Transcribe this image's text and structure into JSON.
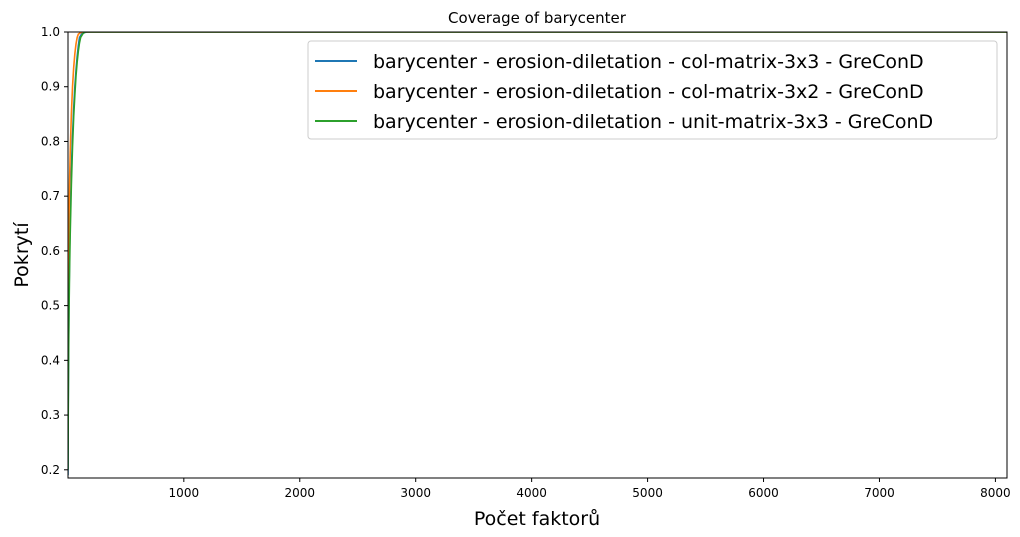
{
  "chart_data": {
    "type": "line",
    "title": "Coverage of barycenter",
    "xlabel": "Počet faktorů",
    "ylabel": "Pokrytí",
    "xlim": [
      1,
      8100
    ],
    "ylim": [
      0.185,
      1.0
    ],
    "xticks": [
      1000,
      2000,
      3000,
      4000,
      5000,
      6000,
      7000,
      8000
    ],
    "yticks": [
      0.2,
      0.3,
      0.4,
      0.5,
      0.6,
      0.7,
      0.8,
      0.9,
      1.0
    ],
    "ytick_labels": [
      "0.2",
      "0.3",
      "0.4",
      "0.5",
      "0.6",
      "0.7",
      "0.8",
      "0.9",
      "1.0"
    ],
    "grid": false,
    "legend_position": "top-right",
    "series": [
      {
        "name": "barycenter - erosion-diletation - col-matrix-3x3 - GreConD",
        "color": "#1f77b4",
        "x": [
          1,
          3,
          6,
          10,
          15,
          20,
          30,
          40,
          50,
          60,
          70,
          80,
          90,
          100,
          120,
          140,
          170,
          200,
          8100
        ],
        "y": [
          0.19,
          0.32,
          0.42,
          0.52,
          0.6,
          0.66,
          0.75,
          0.81,
          0.86,
          0.9,
          0.93,
          0.955,
          0.975,
          0.99,
          0.997,
          0.999,
          1.0,
          1.0,
          1.0
        ]
      },
      {
        "name": "barycenter - erosion-diletation - col-matrix-3x2 - GreConD",
        "color": "#ff7f0e",
        "x": [
          1,
          3,
          6,
          10,
          15,
          20,
          30,
          40,
          50,
          60,
          70,
          80,
          90,
          110,
          130,
          160,
          8100
        ],
        "y": [
          0.3,
          0.45,
          0.56,
          0.66,
          0.73,
          0.78,
          0.85,
          0.9,
          0.935,
          0.96,
          0.978,
          0.99,
          0.996,
          0.999,
          1.0,
          1.0,
          1.0
        ]
      },
      {
        "name": "barycenter - erosion-diletation - unit-matrix-3x3 - GreConD",
        "color": "#2ca02c",
        "x": [
          1,
          3,
          6,
          10,
          15,
          20,
          30,
          40,
          50,
          60,
          70,
          80,
          90,
          100,
          110,
          130,
          150,
          180,
          8100
        ],
        "y": [
          0.2,
          0.3,
          0.4,
          0.49,
          0.57,
          0.63,
          0.72,
          0.79,
          0.845,
          0.885,
          0.92,
          0.945,
          0.965,
          0.98,
          0.99,
          0.997,
          1.0,
          1.0,
          1.0
        ]
      }
    ]
  }
}
